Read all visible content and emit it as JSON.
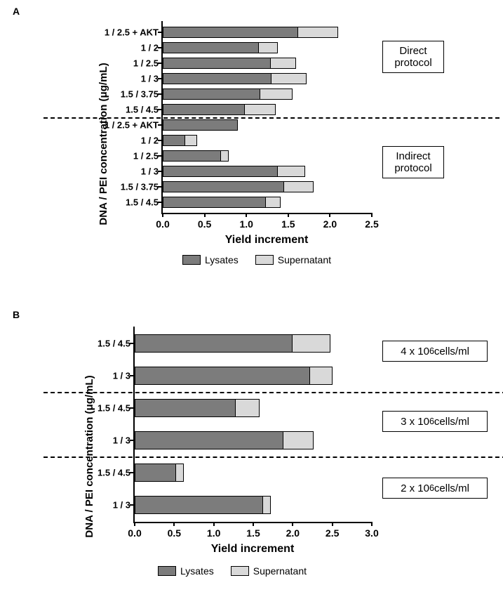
{
  "colors": {
    "lysates": "#7c7c7c",
    "supernatant": "#d9d9d9",
    "axis": "#000000",
    "background": "#ffffff"
  },
  "legend": {
    "lysates": "Lysates",
    "supernatant": "Supernatant"
  },
  "panelA": {
    "label": "A",
    "type": "stacked-horizontal-bar",
    "x_title": "Yield increment",
    "y_title": "DNA / PEI concentration (μg/mL)",
    "xlim": [
      0.0,
      2.5
    ],
    "xtick_step": 0.5,
    "xticks": [
      "0.0",
      "0.5",
      "1.0",
      "1.5",
      "2.0",
      "2.5"
    ],
    "bar_border": "#000000",
    "categories_top_to_bottom": [
      {
        "label": "1 / 2.5 + AKT",
        "lysates": 1.62,
        "supernatant": 0.48,
        "group": "direct"
      },
      {
        "label": "1 / 2",
        "lysates": 1.15,
        "supernatant": 0.23,
        "group": "direct"
      },
      {
        "label": "1 / 2.5",
        "lysates": 1.29,
        "supernatant": 0.3,
        "group": "direct"
      },
      {
        "label": "1 / 3",
        "lysates": 1.3,
        "supernatant": 0.42,
        "group": "direct"
      },
      {
        "label": "1.5 / 3.75",
        "lysates": 1.17,
        "supernatant": 0.38,
        "group": "direct"
      },
      {
        "label": "1.5 / 4.5",
        "lysates": 0.98,
        "supernatant": 0.37,
        "group": "direct"
      },
      {
        "label": "1 / 2.5 + AKT",
        "lysates": 0.9,
        "supernatant": 0.0,
        "group": "indirect"
      },
      {
        "label": "1 / 2",
        "lysates": 0.27,
        "supernatant": 0.14,
        "group": "indirect"
      },
      {
        "label": "1 / 2.5",
        "lysates": 0.7,
        "supernatant": 0.09,
        "group": "indirect"
      },
      {
        "label": "1 / 3",
        "lysates": 1.38,
        "supernatant": 0.32,
        "group": "indirect"
      },
      {
        "label": "1.5 / 3.75",
        "lysates": 1.45,
        "supernatant": 0.35,
        "group": "indirect"
      },
      {
        "label": "1.5 / 4.5",
        "lysates": 1.23,
        "supernatant": 0.18,
        "group": "indirect"
      }
    ],
    "group_labels": {
      "direct": "Direct\nprotocol",
      "indirect": "Indirect\nprotocol"
    }
  },
  "panelB": {
    "label": "B",
    "type": "stacked-horizontal-bar",
    "x_title": "Yield increment",
    "y_title": "DNA / PEI concentration (μg/mL)",
    "xlim": [
      0.0,
      3.0
    ],
    "xtick_step": 0.5,
    "xticks": [
      "0.0",
      "0.5",
      "1.0",
      "1.5",
      "2.0",
      "2.5",
      "3.0"
    ],
    "bar_border": "#000000",
    "categories_top_to_bottom": [
      {
        "label": "1.5 / 4.5",
        "lysates": 2.0,
        "supernatant": 0.48,
        "group": "g4"
      },
      {
        "label": "1 / 3",
        "lysates": 2.22,
        "supernatant": 0.28,
        "group": "g4"
      },
      {
        "label": "1.5 / 4.5",
        "lysates": 1.28,
        "supernatant": 0.3,
        "group": "g3"
      },
      {
        "label": "1 / 3",
        "lysates": 1.88,
        "supernatant": 0.38,
        "group": "g3"
      },
      {
        "label": "1.5 / 4.5",
        "lysates": 0.52,
        "supernatant": 0.1,
        "group": "g2"
      },
      {
        "label": "1 / 3",
        "lysates": 1.62,
        "supernatant": 0.1,
        "group": "g2"
      }
    ],
    "group_labels": {
      "g4": "4 × 10⁶ cells/ml",
      "g3": "3 × 10⁶ cells/ml",
      "g2": "2 × 10⁶ cells/ml"
    }
  }
}
